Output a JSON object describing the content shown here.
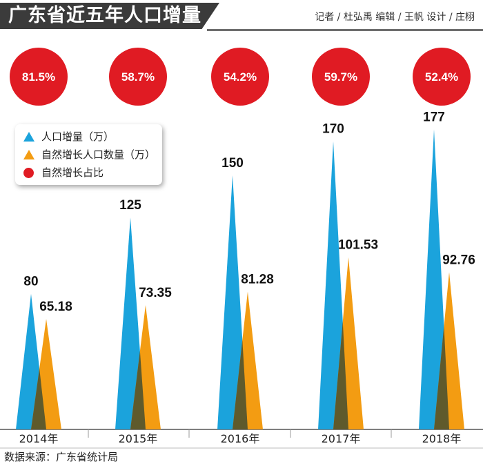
{
  "header": {
    "title": "广东省近五年人口增量",
    "credits": "记者 / 杜弘禹   编辑 / 王帆   设计 / 庄栩"
  },
  "legend": {
    "items": [
      {
        "label": "人口增量（万）",
        "color": "#1ba3dc",
        "icon": "triangle-icon"
      },
      {
        "label": "自然增长人口数量（万）",
        "color": "#f39c12",
        "icon": "triangle-icon"
      },
      {
        "label": "自然增长占比",
        "color": "#e01b23",
        "icon": "circle-icon"
      }
    ]
  },
  "source": "数据来源：广东省统计局",
  "colors": {
    "blue": "#1ba3dc",
    "orange": "#f39c12",
    "red": "#e01b23",
    "overlap": "#5f5a2c"
  },
  "chart_data": {
    "type": "bar",
    "categories": [
      "2014年",
      "2015年",
      "2016年",
      "2017年",
      "2018年"
    ],
    "series": [
      {
        "name": "人口增量（万）",
        "values": [
          80,
          125,
          150,
          170,
          177
        ],
        "labels": [
          "80",
          "125",
          "150",
          "170",
          "177"
        ]
      },
      {
        "name": "自然增长人口数量（万）",
        "values": [
          65.18,
          73.35,
          81.28,
          101.53,
          92.76
        ],
        "labels": [
          "65.18",
          "73.35",
          "81.28",
          "101.53",
          "92.76"
        ]
      }
    ],
    "ratio": {
      "name": "自然增长占比",
      "values": [
        "81.5%",
        "58.7%",
        "54.2%",
        "59.7%",
        "52.4%"
      ]
    },
    "ylim": [
      0,
      200
    ],
    "grid": false
  }
}
